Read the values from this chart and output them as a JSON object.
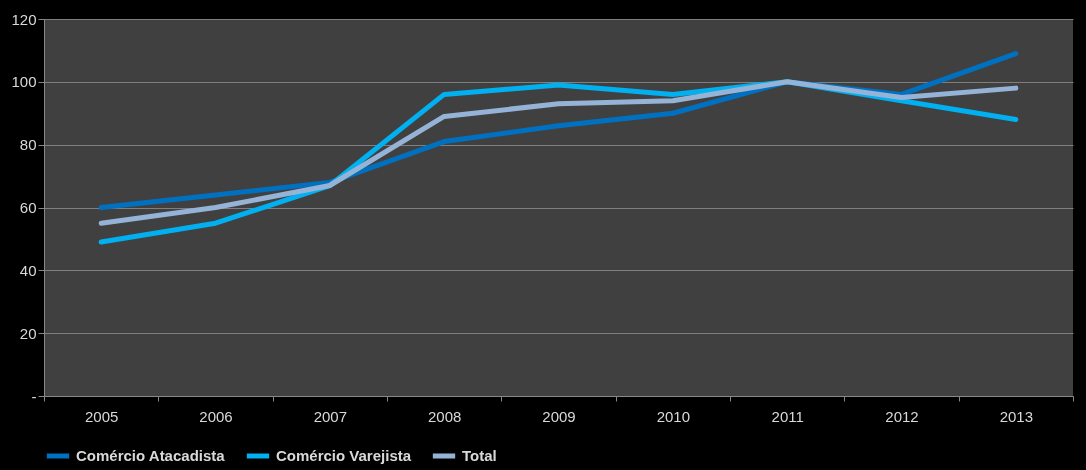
{
  "chart_data": {
    "type": "line",
    "categories": [
      "2005",
      "2006",
      "2007",
      "2008",
      "2009",
      "2010",
      "2011",
      "2012",
      "2013"
    ],
    "series": [
      {
        "name": "Comércio Atacadista",
        "color": "#0070c0",
        "values": [
          60,
          64,
          68,
          81,
          86,
          90,
          100,
          96,
          109
        ]
      },
      {
        "name": "Comércio Varejista",
        "color": "#00b0f0",
        "values": [
          49,
          55,
          67,
          96,
          99,
          96,
          100,
          94,
          88
        ]
      },
      {
        "name": "Total",
        "color": "#95b3d7",
        "values": [
          55,
          60,
          67,
          89,
          93,
          94,
          100,
          95,
          98
        ]
      }
    ],
    "ylim": [
      0,
      120
    ],
    "yticks": [
      {
        "value": 0,
        "label": "-"
      },
      20,
      40,
      60,
      80,
      100,
      120
    ],
    "grid": "y",
    "legend": "bottom",
    "marker": "none",
    "line_style": "solid"
  }
}
